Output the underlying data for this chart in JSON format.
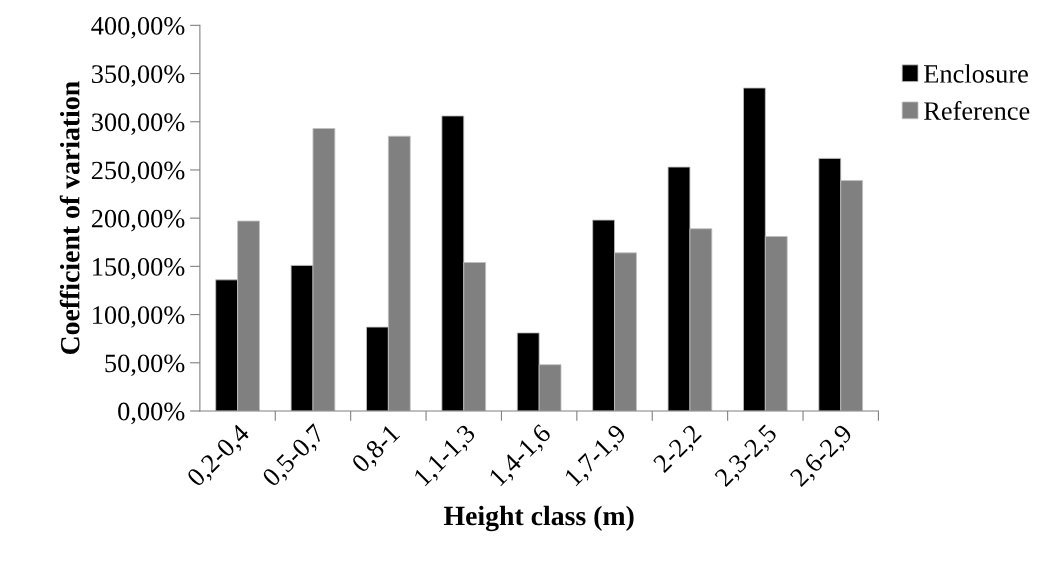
{
  "chart_data": {
    "type": "bar",
    "xlabel": "Height class (m)",
    "ylabel": "Coefficient of variation",
    "categories": [
      "0,2-0,4",
      "0,5-0,7",
      "0,8-1",
      "1,1-1,3",
      "1,4-1,6",
      "1,7-1,9",
      "2-2,2",
      "2,3-2,5",
      "2,6-2,9"
    ],
    "series": [
      {
        "name": "Enclosure",
        "color": "#000000",
        "values": [
          136,
          151,
          87,
          306,
          81,
          198,
          253,
          335,
          262
        ]
      },
      {
        "name": "Reference",
        "color": "#808080",
        "values": [
          197,
          293,
          285,
          154,
          48,
          164,
          189,
          181,
          239
        ]
      }
    ],
    "ylim": [
      0,
      400
    ],
    "yticks": [
      {
        "value": 0,
        "label": "0,00%"
      },
      {
        "value": 50,
        "label": "50,00%"
      },
      {
        "value": 100,
        "label": "100,00%"
      },
      {
        "value": 150,
        "label": "150,00%"
      },
      {
        "value": 200,
        "label": "200,00%"
      },
      {
        "value": 250,
        "label": "250,00%"
      },
      {
        "value": 300,
        "label": "300,00%"
      },
      {
        "value": 350,
        "label": "350,00%"
      },
      {
        "value": 400,
        "label": "400,00%"
      }
    ],
    "grid": false,
    "legend": "right"
  }
}
